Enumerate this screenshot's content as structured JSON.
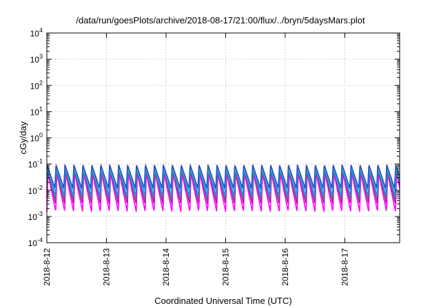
{
  "chart_data": {
    "type": "line",
    "title": "/data/run/goesPlots/archive/2018-08-17/21:00/flux/../bryn/5daysMars.plot",
    "xlabel": "Coordinated Universal Time (UTC)",
    "ylabel": "cGy/day",
    "yscale": "log",
    "ylim_exp": [
      -4,
      4
    ],
    "y_tick_base": "10",
    "y_tick_exponents": [
      "-4",
      "-3",
      "-2",
      "-1",
      "0",
      "1",
      "2",
      "3",
      "4"
    ],
    "x_ticks": [
      "2018-8-12",
      "2018-8-13",
      "2018-8-14",
      "2018-8-15",
      "2018-8-16",
      "2018-8-17"
    ],
    "x_range_days": [
      0,
      5.92
    ],
    "grid": "dotted",
    "oscillation_period_hours": 3.6,
    "series": [
      {
        "color": "#ff00ff",
        "peak": 0.045,
        "trough": 0.0015
      },
      {
        "color": "#cc00cc",
        "peak": 0.06,
        "trough": 0.003
      },
      {
        "color": "#6a6a6a",
        "peak": 0.065,
        "trough": 0.004
      },
      {
        "color": "#1e90ff",
        "peak": 0.08,
        "trough": 0.006
      },
      {
        "color": "#00cccc",
        "peak": 0.07,
        "trough": 0.01
      },
      {
        "color": "#3344cc",
        "peak": 0.095,
        "trough": 0.012
      }
    ]
  }
}
